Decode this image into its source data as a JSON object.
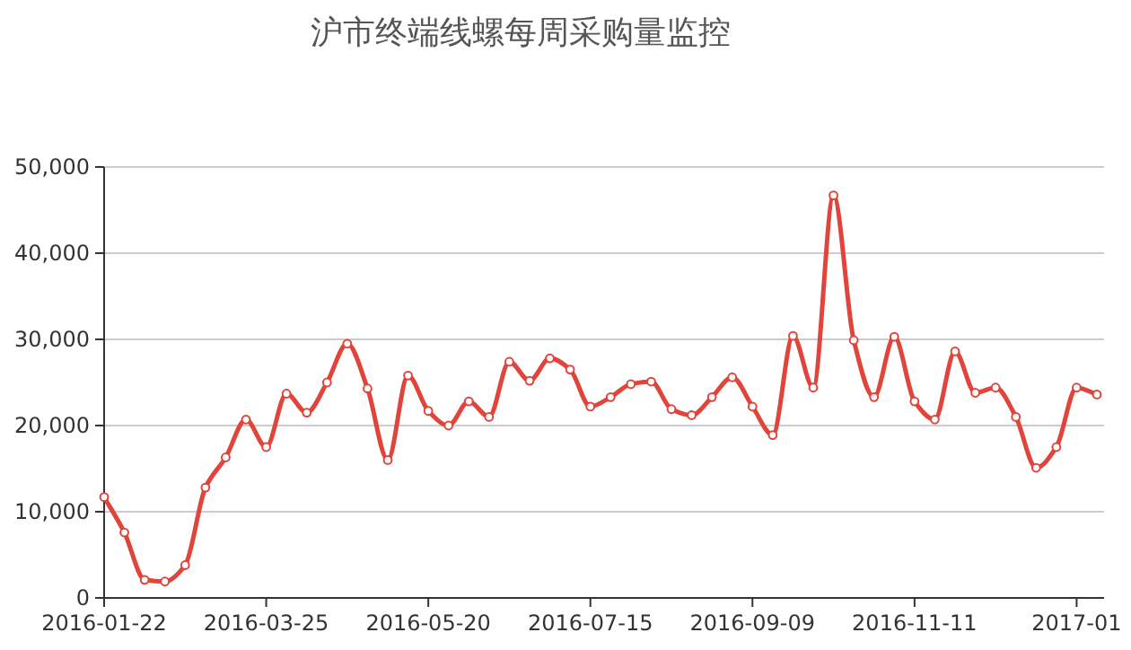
{
  "chart_data": {
    "type": "line",
    "title": "沪市终端线螺每周采购量监控",
    "categories": [
      "2016-01-22",
      null,
      null,
      null,
      null,
      null,
      null,
      null,
      "2016-03-25",
      null,
      null,
      null,
      null,
      null,
      null,
      null,
      "2016-05-20",
      null,
      null,
      null,
      null,
      null,
      null,
      null,
      "2016-07-15",
      null,
      null,
      null,
      null,
      null,
      null,
      null,
      "2016-09-09",
      null,
      null,
      null,
      null,
      null,
      null,
      null,
      "2016-11-11",
      null,
      null,
      null,
      null,
      null,
      null,
      null,
      "2017-01",
      null
    ],
    "series": [
      {
        "color": "#e0443a",
        "values": [
          11700,
          7600,
          2100,
          1900,
          3800,
          12800,
          16300,
          20700,
          17500,
          23700,
          21500,
          25000,
          29500,
          24300,
          16000,
          25800,
          21700,
          20000,
          22800,
          21000,
          27400,
          25200,
          27800,
          26500,
          22200,
          23300,
          24800,
          25100,
          21900,
          21200,
          23300,
          25600,
          22200,
          18900,
          30400,
          24400,
          46700,
          29900,
          23300,
          30300,
          22800,
          20700,
          28600,
          23800,
          24400,
          21000,
          15100,
          17500,
          24400,
          23600
        ]
      }
    ],
    "ylim": [
      0,
      50000
    ],
    "yticks": [
      {
        "value": 0,
        "label": "0"
      },
      {
        "value": 10000,
        "label": "10,000"
      },
      {
        "value": 20000,
        "label": "20,000"
      },
      {
        "value": 30000,
        "label": "30,000"
      },
      {
        "value": 40000,
        "label": "40,000"
      },
      {
        "value": 50000,
        "label": "50,000"
      }
    ],
    "grid": "y",
    "marker": "circle",
    "line_style": "solid"
  }
}
